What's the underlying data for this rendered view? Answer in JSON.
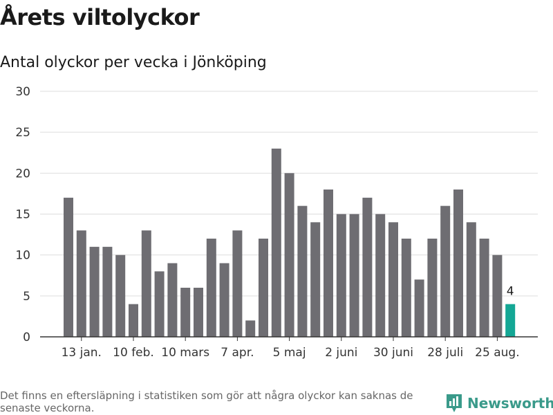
{
  "title": "Årets viltolyckor",
  "subtitle": "Antal olyckor per vecka i Jönköping",
  "footnote": "Det finns en eftersläpning i statistiken som gör att några olyckor kan saknas de senaste veckorna.",
  "brand": {
    "name": "Newsworthy",
    "color": "#3a9a8a"
  },
  "colors": {
    "bar": "#6e6d72",
    "highlight": "#14a795",
    "grid": "#dddddd",
    "axis": "#333333"
  },
  "chart_data": {
    "type": "bar",
    "title": "Årets viltolyckor",
    "subtitle": "Antal olyckor per vecka i Jönköping",
    "xlabel": "",
    "ylabel": "",
    "ylim": [
      0,
      30
    ],
    "yticks": [
      0,
      5,
      10,
      15,
      20,
      25,
      30
    ],
    "grid": true,
    "values": [
      17,
      13,
      11,
      11,
      10,
      4,
      13,
      8,
      9,
      6,
      6,
      12,
      9,
      13,
      2,
      12,
      23,
      20,
      16,
      14,
      18,
      15,
      15,
      17,
      15,
      14,
      12,
      7,
      12,
      16,
      18,
      14,
      12,
      10,
      4
    ],
    "xtick_labels": [
      {
        "index": 1,
        "label": "13 jan."
      },
      {
        "index": 5,
        "label": "10 feb."
      },
      {
        "index": 9,
        "label": "10 mars"
      },
      {
        "index": 13,
        "label": "7 apr."
      },
      {
        "index": 17,
        "label": "5 maj"
      },
      {
        "index": 21,
        "label": "2 juni"
      },
      {
        "index": 25,
        "label": "30 juni"
      },
      {
        "index": 29,
        "label": "28 juli"
      },
      {
        "index": 33,
        "label": "25 aug."
      }
    ],
    "highlight_index": 34,
    "highlight_label": "4"
  }
}
